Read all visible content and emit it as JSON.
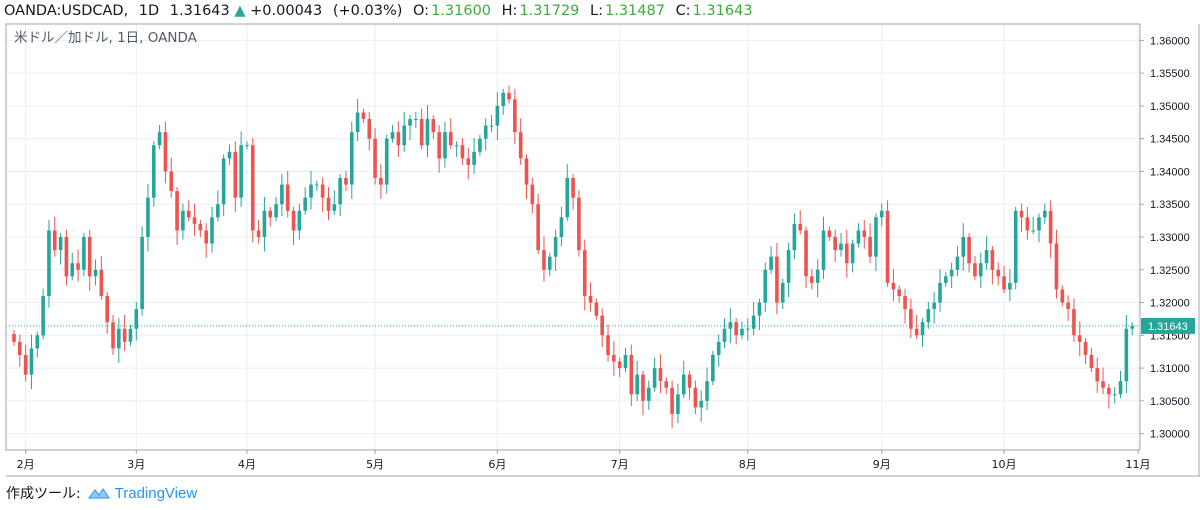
{
  "header": {
    "symbol": "OANDA:USDCAD,",
    "interval": "1D",
    "last": "1.31643",
    "change_arrow": "▲",
    "change": "+0.00043",
    "change_pct": "(+0.03%)",
    "open_label": "O:",
    "open": "1.31600",
    "high_label": "H:",
    "high": "1.31729",
    "low_label": "L:",
    "low": "1.31487",
    "close_label": "C:",
    "close": "1.31643"
  },
  "footer": {
    "created_with": "作成ツール:",
    "brand": "TradingView"
  },
  "colors": {
    "up": "#26a69a",
    "down": "#ef5350",
    "grid": "#e9edf2",
    "price_line": "#26a69a",
    "axis": "#a0a4aa"
  },
  "chart_data": {
    "type": "candlestick",
    "title": "米ドル／加ドル, 1日, OANDA",
    "ylim": [
      1.2975,
      1.3625
    ],
    "y_ticks": [
      "1.30000",
      "1.30500",
      "1.31000",
      "1.31500",
      "1.32000",
      "1.32500",
      "1.33000",
      "1.33500",
      "1.34000",
      "1.34500",
      "1.35000",
      "1.35500",
      "1.36000"
    ],
    "x_ticks": [
      {
        "label": "2月",
        "index": 2
      },
      {
        "label": "3月",
        "index": 21
      },
      {
        "label": "4月",
        "index": 40
      },
      {
        "label": "5月",
        "index": 62
      },
      {
        "label": "6月",
        "index": 83
      },
      {
        "label": "7月",
        "index": 104
      },
      {
        "label": "8月",
        "index": 126
      },
      {
        "label": "9月",
        "index": 149
      },
      {
        "label": "10月",
        "index": 170
      },
      {
        "label": "11月",
        "index": 193
      }
    ],
    "last_price": 1.31643,
    "last_price_label": "1.31643",
    "grid": true,
    "series": [
      {
        "closes": [
          1.314,
          1.312,
          1.309,
          1.313,
          1.315,
          1.321,
          1.331,
          1.328,
          1.33,
          1.324,
          1.326,
          1.325,
          1.33,
          1.324,
          1.325,
          1.321,
          1.317,
          1.313,
          1.316,
          1.314,
          1.316,
          1.319,
          1.33,
          1.336,
          1.344,
          1.346,
          1.34,
          1.337,
          1.331,
          1.334,
          1.333,
          1.332,
          1.331,
          1.329,
          1.333,
          1.335,
          1.342,
          1.343,
          1.336,
          1.344,
          1.344,
          1.331,
          1.33,
          1.334,
          1.333,
          1.335,
          1.338,
          1.334,
          1.331,
          1.334,
          1.336,
          1.338,
          1.338,
          1.336,
          1.334,
          1.335,
          1.339,
          1.338,
          1.346,
          1.349,
          1.348,
          1.345,
          1.339,
          1.338,
          1.345,
          1.346,
          1.344,
          1.347,
          1.348,
          1.348,
          1.344,
          1.348,
          1.346,
          1.342,
          1.346,
          1.344,
          1.344,
          1.342,
          1.341,
          1.343,
          1.345,
          1.347,
          1.347,
          1.35,
          1.352,
          1.351,
          1.346,
          1.342,
          1.338,
          1.335,
          1.328,
          1.325,
          1.327,
          1.33,
          1.333,
          1.339,
          1.336,
          1.328,
          1.321,
          1.32,
          1.318,
          1.315,
          1.312,
          1.311,
          1.31,
          1.312,
          1.306,
          1.309,
          1.305,
          1.307,
          1.31,
          1.308,
          1.307,
          1.303,
          1.306,
          1.309,
          1.307,
          1.304,
          1.305,
          1.308,
          1.312,
          1.314,
          1.316,
          1.317,
          1.315,
          1.316,
          1.316,
          1.318,
          1.32,
          1.325,
          1.327,
          1.32,
          1.323,
          1.328,
          1.332,
          1.331,
          1.324,
          1.323,
          1.325,
          1.331,
          1.33,
          1.328,
          1.329,
          1.326,
          1.329,
          1.331,
          1.33,
          1.327,
          1.333,
          1.334,
          1.323,
          1.322,
          1.321,
          1.319,
          1.316,
          1.315,
          1.317,
          1.319,
          1.32,
          1.323,
          1.324,
          1.325,
          1.327,
          1.33,
          1.326,
          1.324,
          1.326,
          1.328,
          1.325,
          1.324,
          1.322,
          1.323,
          1.334,
          1.333,
          1.331,
          1.331,
          1.333,
          1.334,
          1.329,
          1.322,
          1.32,
          1.319,
          1.315,
          1.314,
          1.312,
          1.31,
          1.308,
          1.307,
          1.306,
          1.306,
          1.308,
          1.316,
          1.3164
        ]
      }
    ]
  }
}
